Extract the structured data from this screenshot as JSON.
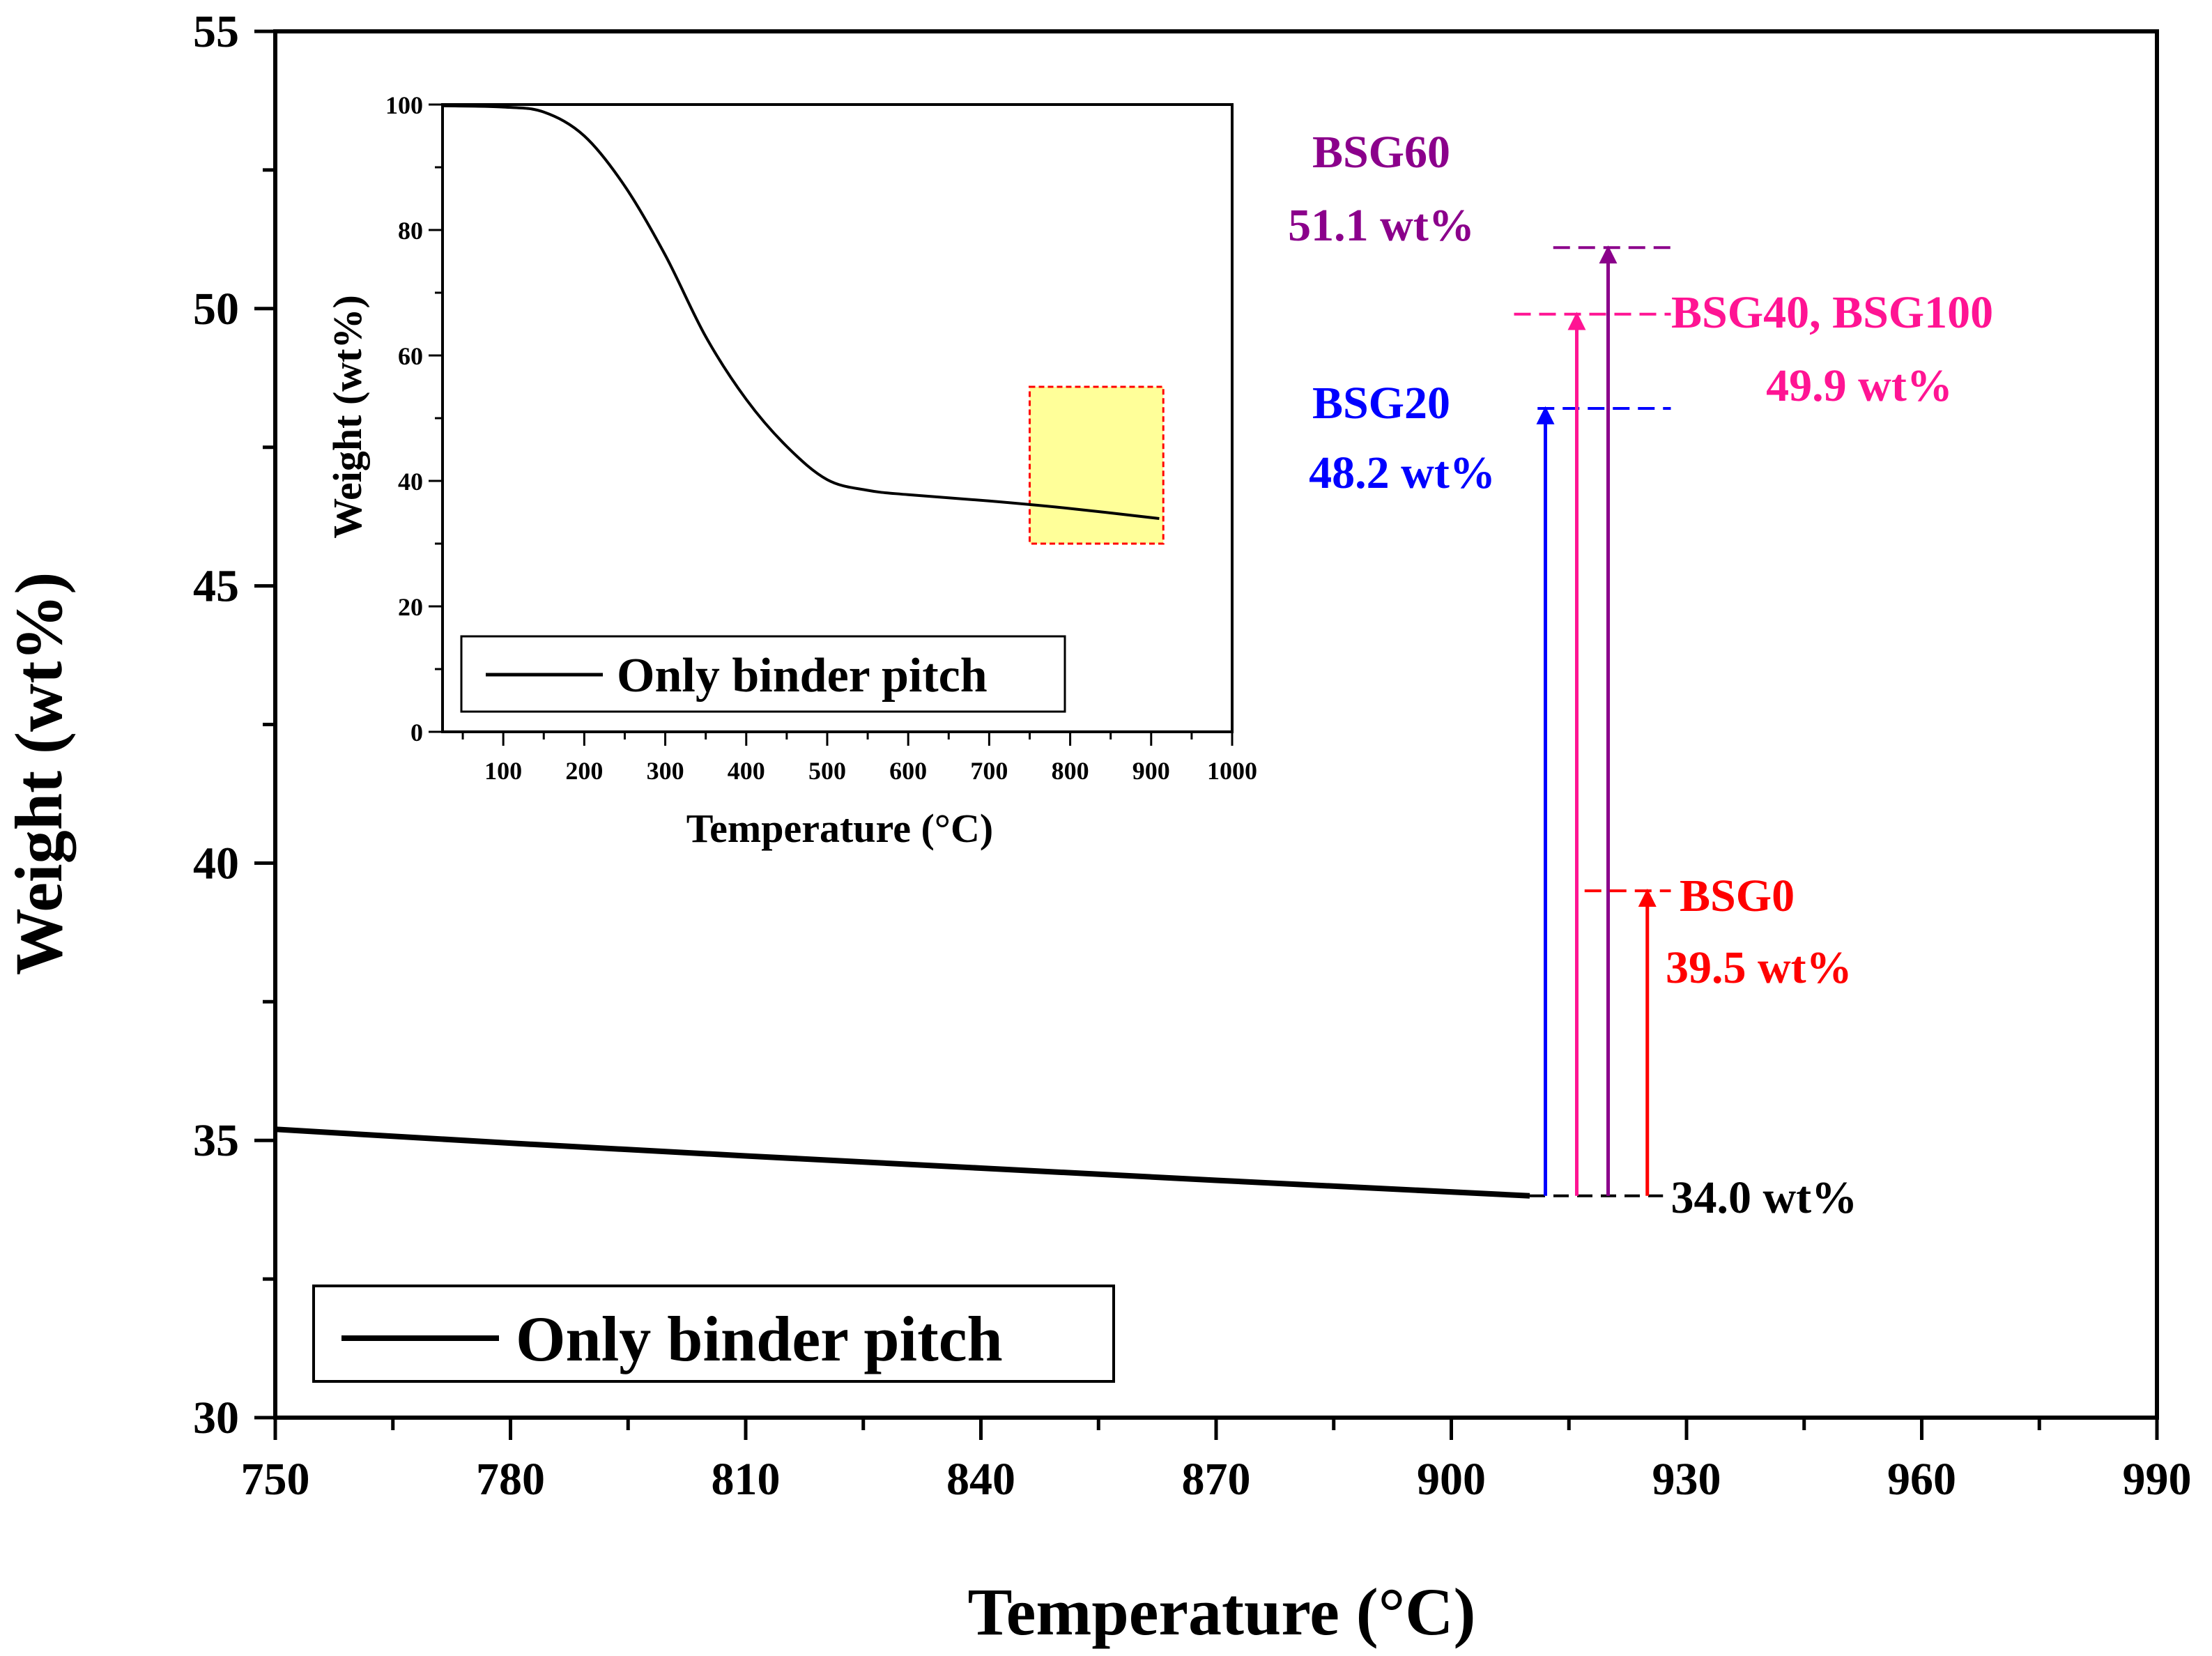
{
  "chart_data": [
    {
      "id": "main",
      "type": "line",
      "xlabel": "Temperature (°C)",
      "ylabel": "Weight (wt%)",
      "xlim": [
        750,
        990
      ],
      "ylim": [
        30,
        55
      ],
      "xticks": [
        "750",
        "780",
        "810",
        "840",
        "870",
        "900",
        "930",
        "960",
        "990"
      ],
      "yticks": [
        "30",
        "35",
        "40",
        "45",
        "50",
        "55"
      ],
      "legend": {
        "label": "Only binder pitch",
        "position": "bottom-left"
      },
      "series": [
        {
          "name": "Only binder pitch",
          "color": "#000000",
          "x": [
            750,
            780,
            810,
            840,
            870,
            910
          ],
          "y": [
            35.2,
            34.95,
            34.72,
            34.5,
            34.28,
            34.0
          ]
        }
      ],
      "annotations": [
        {
          "id": "base",
          "label": "34.0 wt%",
          "value": 34.0,
          "color": "#000000"
        },
        {
          "id": "bsg0",
          "name": "BSG0",
          "label": "39.5 wt%",
          "value": 39.5,
          "arrow_x": 925,
          "color": "#ff0000"
        },
        {
          "id": "bsg20",
          "name": "BSG20",
          "label": "48.2 wt%",
          "value": 48.2,
          "arrow_x": 912,
          "color": "#0000ff"
        },
        {
          "id": "bsg40",
          "name": "BSG40, BSG100",
          "label": "49.9 wt%",
          "value": 49.9,
          "arrow_x": 916,
          "color": "#ff1493"
        },
        {
          "id": "bsg60",
          "name": "BSG60",
          "label": "51.1 wt%",
          "value": 51.1,
          "arrow_x": 920,
          "color": "#8b008b"
        }
      ]
    },
    {
      "id": "inset",
      "type": "line",
      "xlabel": "Temperature (°C)",
      "ylabel": "Weight (wt%)",
      "xlim": [
        25,
        1000
      ],
      "ylim": [
        0,
        100
      ],
      "xticks": [
        "100",
        "200",
        "300",
        "400",
        "500",
        "600",
        "700",
        "800",
        "900",
        "1000"
      ],
      "yticks": [
        "0",
        "20",
        "40",
        "60",
        "80",
        "100"
      ],
      "legend": {
        "label": "Only binder pitch",
        "position": "bottom-left"
      },
      "highlight": {
        "x_range": [
          750,
          915
        ],
        "y_range": [
          30,
          55
        ],
        "fill": "#ffff99",
        "stroke": "#ff0000"
      },
      "series": [
        {
          "name": "Only binder pitch",
          "color": "#000000",
          "x": [
            25,
            100,
            150,
            200,
            250,
            300,
            350,
            400,
            450,
            500,
            550,
            600,
            700,
            800,
            910
          ],
          "y": [
            99.8,
            99.6,
            98.8,
            95,
            87,
            76,
            63,
            53,
            45.5,
            40.2,
            38.5,
            37.8,
            36.8,
            35.6,
            34.0
          ]
        }
      ]
    }
  ]
}
